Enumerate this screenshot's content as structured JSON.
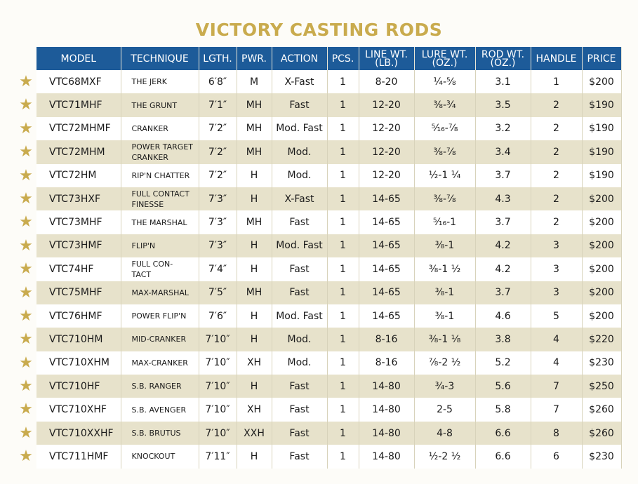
{
  "title": "VICTORY CASTING RODS",
  "table": {
    "header": [
      "MODEL",
      "TECHNIQUE",
      "LGTH.",
      "PWR.",
      "ACTION",
      "PCS.",
      "LINE WT.\n(LB.)",
      "LURE WT.\n(OZ.)",
      "ROD WT.\n(OZ.)",
      "HANDLE",
      "PRICE"
    ],
    "rows": [
      [
        "VTC68MXF",
        "THE JERK",
        "6′8″",
        "M",
        "X-Fast",
        "1",
        "8-20",
        "¼-⅝",
        "3.1",
        "1",
        "$200"
      ],
      [
        "VTC71MHF",
        "THE GRUNT",
        "7′1″",
        "MH",
        "Fast",
        "1",
        "12-20",
        "⅜-¾",
        "3.5",
        "2",
        "$190"
      ],
      [
        "VTC72MHMF",
        "CRANKER",
        "7′2″",
        "MH",
        "Mod. Fast",
        "1",
        "12-20",
        "⁵⁄₁₆-⅞",
        "3.2",
        "2",
        "$190"
      ],
      [
        "VTC72MHM",
        "POWER TARGET\nCRANKER",
        "7′2″",
        "MH",
        "Mod.",
        "1",
        "12-20",
        "⅜-⅞",
        "3.4",
        "2",
        "$190"
      ],
      [
        "VTC72HM",
        "RIP'N CHATTER",
        "7′2″",
        "H",
        "Mod.",
        "1",
        "12-20",
        "½-1 ¼",
        "3.7",
        "2",
        "$190"
      ],
      [
        "VTC73HXF",
        "FULL CONTACT\nFINESSE",
        "7′3″",
        "H",
        "X-Fast",
        "1",
        "14-65",
        "⅜-⅞",
        "4.3",
        "2",
        "$200"
      ],
      [
        "VTC73MHF",
        "THE MARSHAL",
        "7′3″",
        "MH",
        "Fast",
        "1",
        "14-65",
        "⁵⁄₁₆-1",
        "3.7",
        "2",
        "$200"
      ],
      [
        "VTC73HMF",
        "FLIP'N",
        "7′3″",
        "H",
        "Mod. Fast",
        "1",
        "14-65",
        "⅜-1",
        "4.2",
        "3",
        "$200"
      ],
      [
        "VTC74HF",
        "FULL CON-\nTACT",
        "7′4″",
        "H",
        "Fast",
        "1",
        "14-65",
        "⅜-1 ½",
        "4.2",
        "3",
        "$200"
      ],
      [
        "VTC75MHF",
        "MAX-MARSHAL",
        "7′5″",
        "MH",
        "Fast",
        "1",
        "14-65",
        "⅜-1",
        "3.7",
        "3",
        "$200"
      ],
      [
        "VTC76HMF",
        "POWER FLIP'N",
        "7′6″",
        "H",
        "Mod. Fast",
        "1",
        "14-65",
        "⅜-1",
        "4.6",
        "5",
        "$200"
      ],
      [
        "VTC710HM",
        "MID-CRANKER",
        "7′10″",
        "H",
        "Mod.",
        "1",
        "8-16",
        "⅜-1 ⅛",
        "3.8",
        "4",
        "$220"
      ],
      [
        "VTC710XHM",
        "MAX-CRANKER",
        "7′10″",
        "XH",
        "Mod.",
        "1",
        "8-16",
        "⅞-2 ½",
        "5.2",
        "4",
        "$230"
      ],
      [
        "VTC710HF",
        "S.B. RANGER",
        "7′10″",
        "H",
        "Fast",
        "1",
        "14-80",
        "¾-3",
        "5.6",
        "7",
        "$250"
      ],
      [
        "VTC710XHF",
        "S.B. AVENGER",
        "7′10″",
        "XH",
        "Fast",
        "1",
        "14-80",
        "2-5",
        "5.8",
        "7",
        "$260"
      ],
      [
        "VTC710XXHF",
        "S.B. BRUTUS",
        "7′10″",
        "XXH",
        "Fast",
        "1",
        "14-80",
        "4-8",
        "6.6",
        "8",
        "$260"
      ],
      [
        "VTC711HMF",
        "KNOCKOUT",
        "7′11″",
        "H",
        "Fast",
        "1",
        "14-80",
        "½-2 ½",
        "6.6",
        "6",
        "$230"
      ]
    ]
  }
}
